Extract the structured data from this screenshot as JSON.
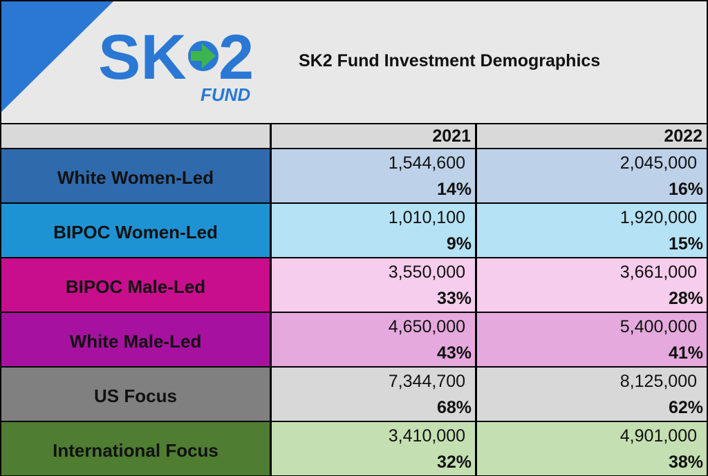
{
  "header": {
    "logo_text": "SK2",
    "logo_sub": "FUND",
    "title": "SK2 Fund Investment Demographics"
  },
  "chart_data": {
    "type": "table",
    "title": "SK2 Fund Investment Demographics",
    "columns": [
      "",
      "2021",
      "2022"
    ],
    "rows": [
      {
        "label": "White Women-Led",
        "values": [
          {
            "amount": "1,544,600",
            "pct": "14%"
          },
          {
            "amount": "2,045,000",
            "pct": "16%"
          }
        ]
      },
      {
        "label": "BIPOC Women-Led",
        "values": [
          {
            "amount": "1,010,100",
            "pct": "9%"
          },
          {
            "amount": "1,920,000",
            "pct": "15%"
          }
        ]
      },
      {
        "label": "BIPOC Male-Led",
        "values": [
          {
            "amount": "3,550,000",
            "pct": "33%"
          },
          {
            "amount": "3,661,000",
            "pct": "28%"
          }
        ]
      },
      {
        "label": "White Male-Led",
        "values": [
          {
            "amount": "4,650,000",
            "pct": "43%"
          },
          {
            "amount": "5,400,000",
            "pct": "41%"
          }
        ]
      },
      {
        "label": "US Focus",
        "values": [
          {
            "amount": "7,344,700",
            "pct": "68%"
          },
          {
            "amount": "8,125,000",
            "pct": "62%"
          }
        ]
      },
      {
        "label": "International Focus",
        "values": [
          {
            "amount": "3,410,000",
            "pct": "32%"
          },
          {
            "amount": "4,901,000",
            "pct": "38%"
          }
        ]
      }
    ],
    "colors": {
      "corner": "#2a78d4",
      "header_bg": "#e8e8e8",
      "column_header_bg": "#d9d9d9",
      "row_label_bg": [
        "#2f6aad",
        "#1e93d4",
        "#c80e8c",
        "#a7119f",
        "#808080",
        "#4f7d32"
      ],
      "row_value_bg": [
        "#bdd1e8",
        "#b5e2f4",
        "#f6cdec",
        "#e5a9dd",
        "#d8d8d8",
        "#c4dfb1"
      ],
      "logo_blue": "#2a78d4",
      "logo_green": "#3db54a"
    }
  }
}
